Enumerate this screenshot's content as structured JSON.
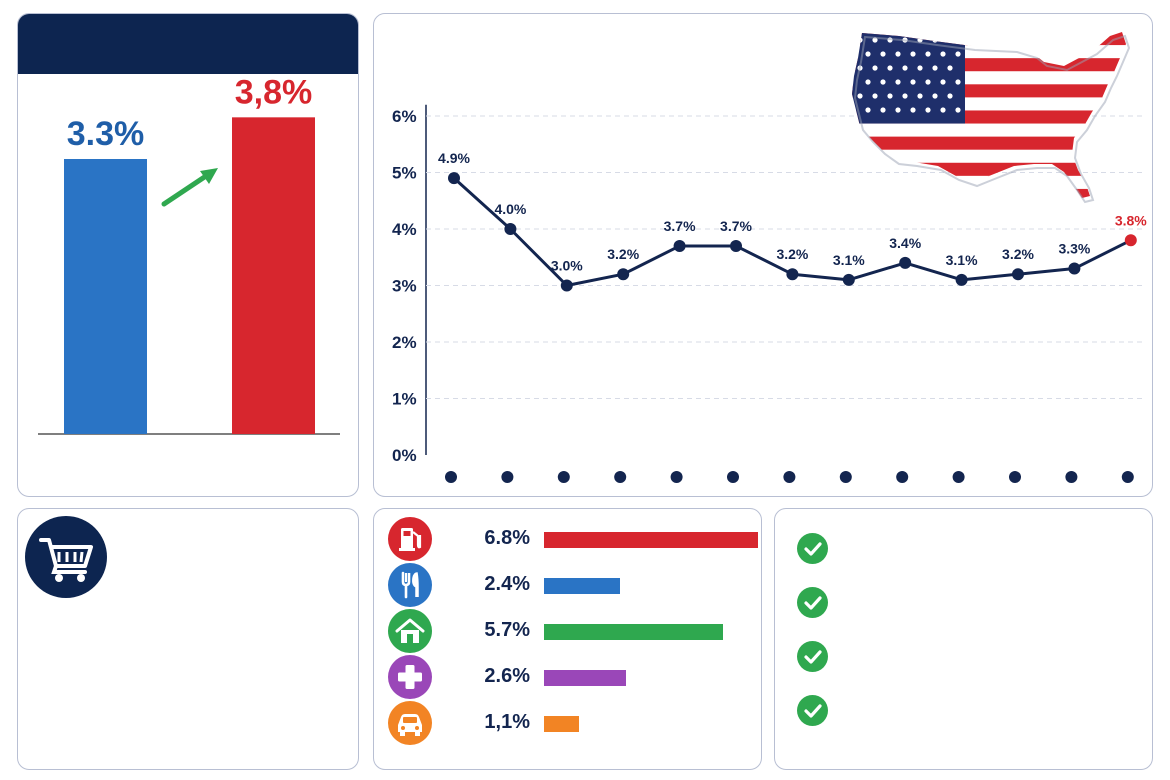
{
  "colors": {
    "navy": "#0d2550",
    "blue": "#2a74c5",
    "red": "#d7262e",
    "green": "#2fa84f",
    "purple": "#9a47b8",
    "orange": "#f28424",
    "grid": "#d7dbe6"
  },
  "comparison": {
    "previous_label": "3.3%",
    "current_label": "3,8%",
    "arrow_icon": "arrow-up-right-icon"
  },
  "chart_data": [
    {
      "type": "bar",
      "categories": [
        "",
        ""
      ],
      "values": [
        3.3,
        3.8
      ],
      "labels": [
        "3.3%",
        "3,8%"
      ],
      "colors": [
        "#2a74c5",
        "#d7262e"
      ],
      "ylim": [
        0,
        4.2
      ]
    },
    {
      "type": "line",
      "title": "",
      "x": [
        1,
        2,
        3,
        4,
        5,
        6,
        7,
        8,
        9,
        10,
        11,
        12,
        13
      ],
      "values": [
        4.9,
        4.0,
        3.0,
        3.2,
        3.7,
        3.7,
        3.2,
        3.1,
        3.4,
        3.1,
        3.2,
        3.3,
        3.8
      ],
      "point_labels": [
        "4.9%",
        "4.0%",
        "3.0%",
        "3.2%",
        "3.7%",
        "3.7%",
        "3.2%",
        "3.1%",
        "3.4%",
        "3.1%",
        "3.2%",
        "3.3%",
        "3.8%"
      ],
      "y_ticks": [
        "0%",
        "1%",
        "2%",
        "3%",
        "4%",
        "5%",
        "6%"
      ],
      "ylim": [
        0,
        6
      ],
      "grid": true,
      "highlight_last_color": "#d7262e"
    },
    {
      "type": "bar",
      "orientation": "horizontal",
      "categories": [
        "fuel-pump-icon",
        "fork-knife-icon",
        "house-icon",
        "medical-cross-icon",
        "car-icon"
      ],
      "values": [
        6.8,
        2.4,
        5.7,
        2.6,
        1.1
      ],
      "labels": [
        "6.8%",
        "2.4%",
        "5.7%",
        "2.6%",
        "1,1%"
      ],
      "colors": [
        "#d7262e",
        "#2a74c5",
        "#2fa84f",
        "#9a47b8",
        "#f28424"
      ],
      "xlim": [
        0,
        6.8
      ]
    }
  ],
  "icons": {
    "map": "usa-flag-map-icon",
    "cart": "shopping-cart-icon",
    "check": "check-circle-icon"
  },
  "checklist": {
    "count": 4
  }
}
